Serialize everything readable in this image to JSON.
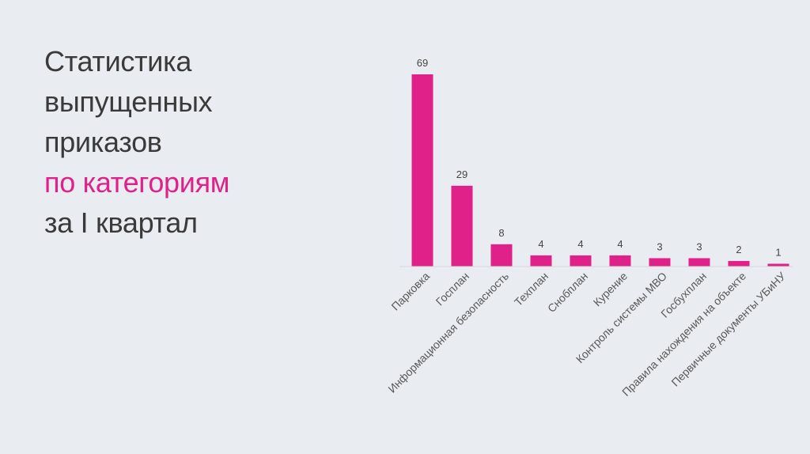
{
  "title": {
    "lines": [
      "Статистика",
      "выпущенных",
      "приказов"
    ],
    "accent_line": "по категориям",
    "last_line": "за I квартал"
  },
  "chart_data": {
    "type": "bar",
    "categories": [
      "Парковка",
      "Госплан",
      "Информационная безопасность",
      "Техплан",
      "Снобплан",
      "Курение",
      "Контроль системы МВО",
      "Госбухплан",
      "Правила нахождения на объекте",
      "Первичные документы УБиНУ"
    ],
    "values": [
      69,
      29,
      8,
      4,
      4,
      4,
      3,
      3,
      2,
      1
    ],
    "value_labels": [
      "69",
      "29",
      "8",
      "4",
      "4",
      "4",
      "3",
      "3",
      "2",
      "1"
    ],
    "ylim": [
      0,
      69
    ],
    "grid": false,
    "legend": "none",
    "bar_color": "#e0218a",
    "axis_color": "#d9d9d9"
  },
  "colors": {
    "background": "#e9ecf0",
    "title_text": "#3a3a3a",
    "accent": "#e0218a"
  }
}
